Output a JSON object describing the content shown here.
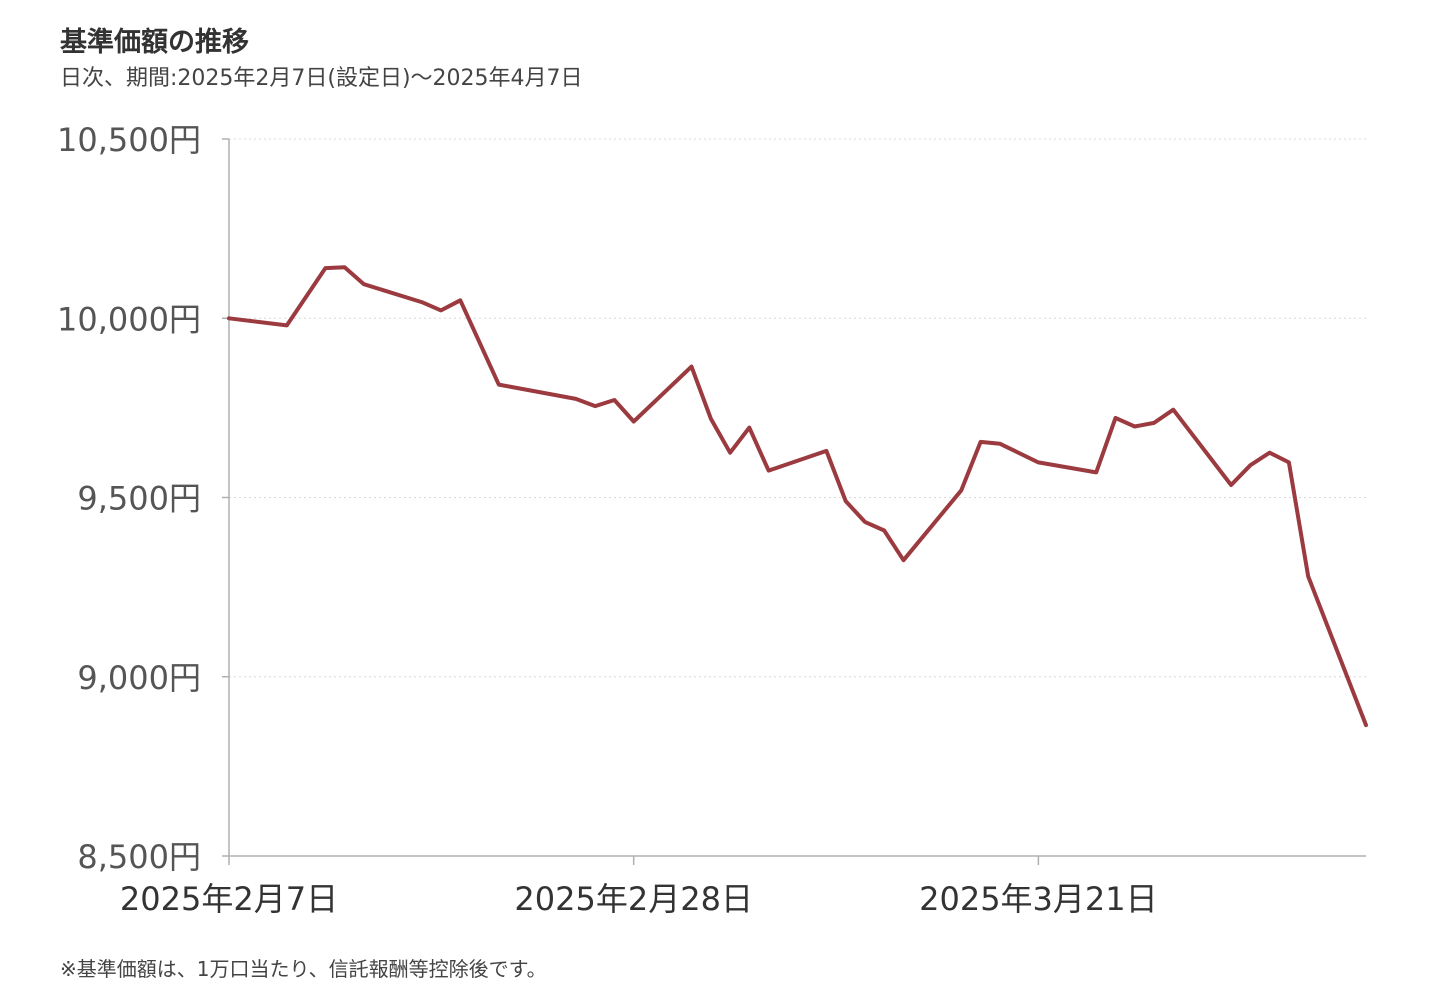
{
  "header": {
    "title": "基準価額の推移",
    "subtitle": "日次、期間:2025年2月7日(設定日)〜2025年4月7日"
  },
  "footnote": "※基準価額は、1万口当たり、信託報酬等控除後です。",
  "colors": {
    "line": "#9b3a3f",
    "axis": "#b0b0b0",
    "grid": "#d9d9d9"
  },
  "chart_data": {
    "type": "line",
    "title": "基準価額の推移",
    "subtitle": "日次、期間:2025年2月7日(設定日)〜2025年4月7日",
    "xlabel": "",
    "ylabel": "",
    "ylim": [
      8500,
      10500
    ],
    "yticks": [
      8500,
      9000,
      9500,
      10000,
      10500
    ],
    "ytick_labels": [
      "8,500円",
      "9,000円",
      "9,500円",
      "10,000円",
      "10,500円"
    ],
    "xlim": [
      "2025-02-07",
      "2025-04-07"
    ],
    "xticks": [
      "2025-02-07",
      "2025-02-28",
      "2025-03-21"
    ],
    "xtick_labels": [
      "2025年2月7日",
      "2025年2月28日",
      "2025年3月21日"
    ],
    "grid": true,
    "series": [
      {
        "points": [
          [
            "2025-02-07",
            10000
          ],
          [
            "2025-02-10",
            9980
          ],
          [
            "2025-02-12",
            10140
          ],
          [
            "2025-02-13",
            10142
          ],
          [
            "2025-02-14",
            10095
          ],
          [
            "2025-02-17",
            10045
          ],
          [
            "2025-02-18",
            10022
          ],
          [
            "2025-02-19",
            10050
          ],
          [
            "2025-02-21",
            9815
          ],
          [
            "2025-02-25",
            9775
          ],
          [
            "2025-02-26",
            9755
          ],
          [
            "2025-02-27",
            9772
          ],
          [
            "2025-02-28",
            9712
          ],
          [
            "2025-03-03",
            9865
          ],
          [
            "2025-03-04",
            9720
          ],
          [
            "2025-03-05",
            9625
          ],
          [
            "2025-03-06",
            9695
          ],
          [
            "2025-03-07",
            9575
          ],
          [
            "2025-03-10",
            9630
          ],
          [
            "2025-03-11",
            9490
          ],
          [
            "2025-03-12",
            9432
          ],
          [
            "2025-03-13",
            9408
          ],
          [
            "2025-03-14",
            9325
          ],
          [
            "2025-03-17",
            9520
          ],
          [
            "2025-03-18",
            9655
          ],
          [
            "2025-03-19",
            9650
          ],
          [
            "2025-03-21",
            9598
          ],
          [
            "2025-03-24",
            9570
          ],
          [
            "2025-03-25",
            9722
          ],
          [
            "2025-03-26",
            9698
          ],
          [
            "2025-03-27",
            9708
          ],
          [
            "2025-03-28",
            9745
          ],
          [
            "2025-03-31",
            9535
          ],
          [
            "2025-04-01",
            9590
          ],
          [
            "2025-04-02",
            9625
          ],
          [
            "2025-04-03",
            9598
          ],
          [
            "2025-04-04",
            9280
          ],
          [
            "2025-04-07",
            8865
          ]
        ]
      }
    ]
  }
}
